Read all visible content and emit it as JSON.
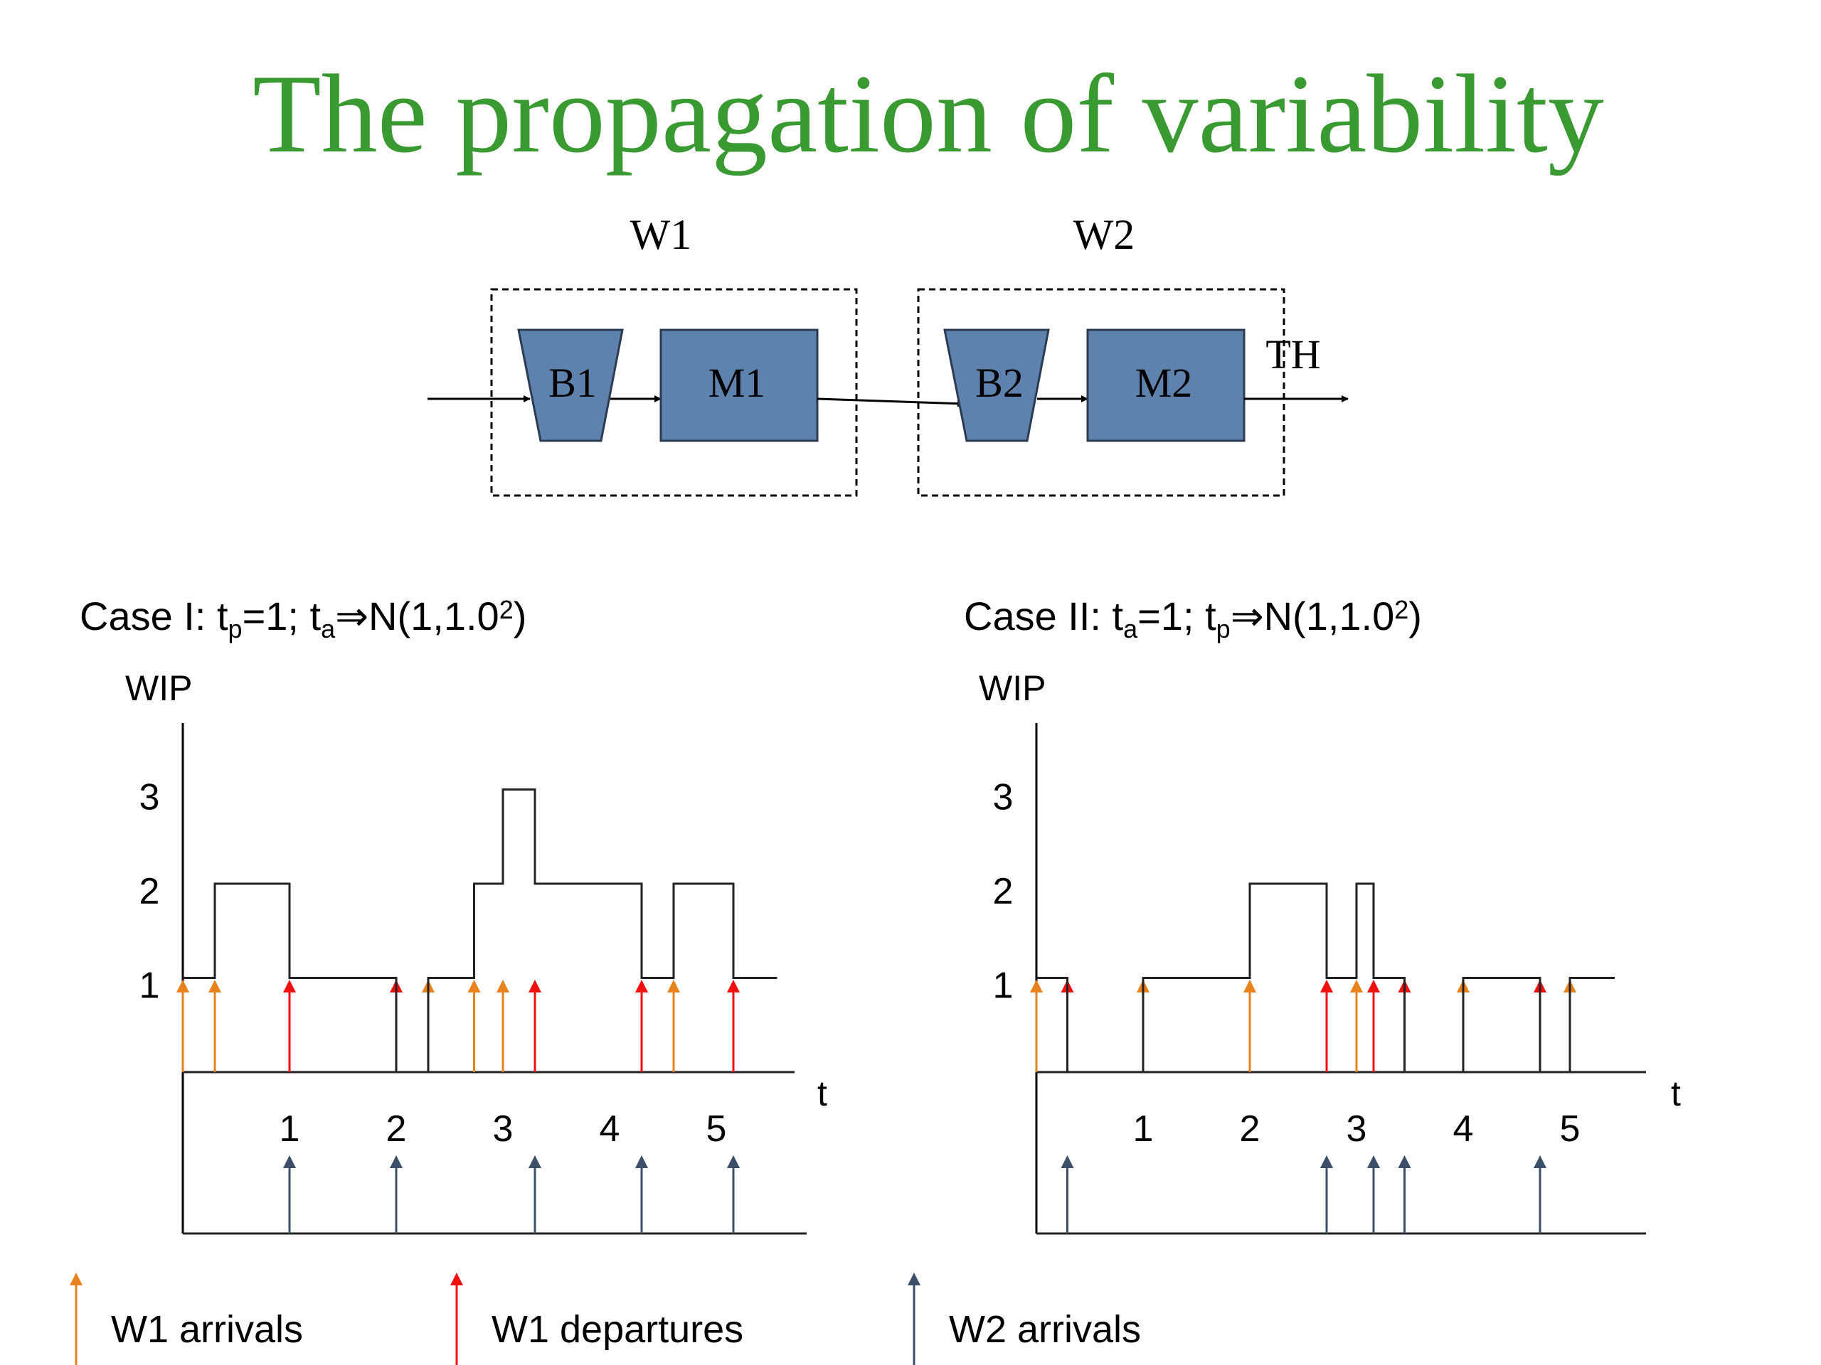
{
  "title": "The propagation of variability",
  "colors": {
    "title": "#3a9a32",
    "block": "#5e81ad",
    "w1_arrival": "#e8821e",
    "w1_departure": "#f01010",
    "w2_arrival": "#3b5068"
  },
  "diagram": {
    "workstations": [
      {
        "label": "W1",
        "buffer": "B1",
        "machine": "M1"
      },
      {
        "label": "W2",
        "buffer": "B2",
        "machine": "M2"
      }
    ],
    "output_label": "TH"
  },
  "chart_data": [
    {
      "type": "step",
      "title": "Case I: t_p=1; t_a⇒N(1,1.0²)",
      "title_parts": {
        "pre": "Case I: t",
        "sub1": "p",
        "mid": "=1; t",
        "sub2": "a",
        "post": "⇒N(1,1.0",
        "sup": "2",
        "end": ")"
      },
      "ylabel": "WIP",
      "xlabel": "t",
      "yticks": [
        "1",
        "2",
        "3"
      ],
      "xticks": [
        "1",
        "2",
        "3",
        "4",
        "5"
      ],
      "xlim": [
        0,
        5.6
      ],
      "ylim": [
        0,
        3.5
      ],
      "wip_steps": [
        [
          0,
          1
        ],
        [
          0.3,
          2
        ],
        [
          1.0,
          1
        ],
        [
          2.0,
          0
        ],
        [
          2.3,
          1
        ],
        [
          2.73,
          2
        ],
        [
          3.0,
          3
        ],
        [
          3.3,
          2
        ],
        [
          4.3,
          1
        ],
        [
          4.6,
          2
        ],
        [
          5.16,
          1
        ],
        [
          5.57,
          1
        ]
      ],
      "w1_arrivals": [
        0,
        0.3,
        2.3,
        2.73,
        3.0,
        4.6
      ],
      "w1_departures": [
        1.0,
        2.0,
        3.3,
        4.3,
        5.16
      ],
      "w2_arrivals": [
        1.0,
        2.0,
        3.3,
        4.3,
        5.16
      ]
    },
    {
      "type": "step",
      "title": "Case II: t_a=1; t_p⇒N(1,1.0²)",
      "title_parts": {
        "pre": "Case II: t",
        "sub1": "a",
        "mid": "=1; t",
        "sub2": "p",
        "post": "⇒N(1,1.0",
        "sup": "2",
        "end": ")"
      },
      "ylabel": "WIP",
      "xlabel": "t",
      "yticks": [
        "1",
        "2",
        "3"
      ],
      "xticks": [
        "1",
        "2",
        "3",
        "4",
        "5"
      ],
      "xlim": [
        0,
        5.6
      ],
      "ylim": [
        0,
        3.5
      ],
      "wip_steps": [
        [
          0,
          1
        ],
        [
          0.29,
          0
        ],
        [
          1.0,
          1
        ],
        [
          2.0,
          2
        ],
        [
          2.72,
          1
        ],
        [
          3.0,
          2
        ],
        [
          3.16,
          1
        ],
        [
          3.45,
          0
        ],
        [
          4.0,
          1
        ],
        [
          4.72,
          0
        ],
        [
          5.0,
          1
        ],
        [
          5.42,
          1
        ]
      ],
      "w1_arrivals": [
        0,
        1.0,
        2.0,
        3.0,
        4.0,
        5.0
      ],
      "w1_departures": [
        0.29,
        2.72,
        3.16,
        3.45,
        4.72
      ],
      "w2_arrivals": [
        0.29,
        2.72,
        3.16,
        3.45,
        4.72
      ]
    }
  ],
  "legend": [
    {
      "label": "W1 arrivals",
      "color_key": "w1_arrival"
    },
    {
      "label": "W1 departures",
      "color_key": "w1_departure"
    },
    {
      "label": "W2 arrivals",
      "color_key": "w2_arrival"
    }
  ]
}
